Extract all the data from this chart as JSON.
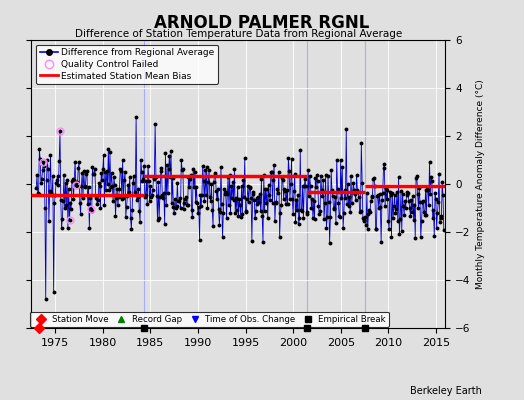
{
  "title": "ARNOLD PALMER RGNL",
  "subtitle": "Difference of Station Temperature Data from Regional Average",
  "ylabel": "Monthly Temperature Anomaly Difference (°C)",
  "credit": "Berkeley Earth",
  "xlim": [
    1972.5,
    2016
  ],
  "ylim": [
    -6,
    6
  ],
  "yticks": [
    -6,
    -4,
    -2,
    0,
    2,
    4,
    6
  ],
  "xticks": [
    1975,
    1980,
    1985,
    1990,
    1995,
    2000,
    2005,
    2010,
    2015
  ],
  "background_color": "#e0e0e0",
  "plot_bg_color": "#e0e0e0",
  "line_color": "#0000cc",
  "dot_color": "#000000",
  "bias_color": "#ff0000",
  "qc_color": "#ff88ff",
  "grid_color": "#ffffff",
  "vline_color": "#aaaaff",
  "seed": 12345,
  "start_year": 1973.0,
  "end_year": 2015.83,
  "n_points": 515,
  "bias_segments": [
    {
      "x_start": 1972.5,
      "x_end": 1984.3,
      "bias": -0.45
    },
    {
      "x_start": 1984.3,
      "x_end": 2001.5,
      "bias": 0.35
    },
    {
      "x_start": 2001.5,
      "x_end": 2007.5,
      "bias": -0.35
    },
    {
      "x_start": 2007.5,
      "x_end": 2016,
      "bias": -0.1
    }
  ],
  "vertical_lines": [
    1984.3,
    2001.5,
    2007.5
  ],
  "empirical_break_years": [
    1984.3,
    2001.5,
    2007.5
  ],
  "station_move_years": [
    1973.3
  ],
  "qc_failed_times": [
    1975.5,
    1976.5,
    1977.2,
    1978.8,
    1973.8
  ]
}
